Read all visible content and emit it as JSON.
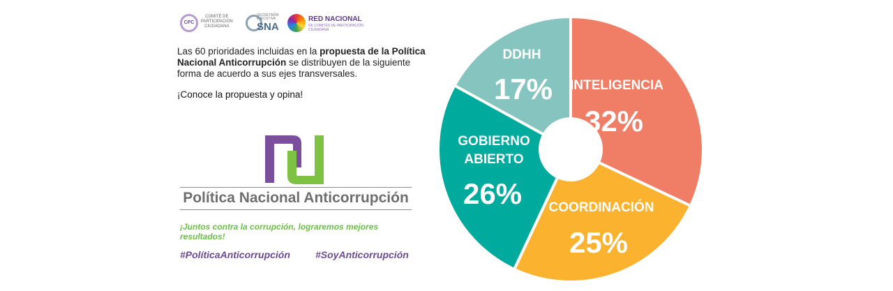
{
  "header": {
    "logo_cpc": {
      "badge": "CPC",
      "line1": "COMITÉ DE",
      "line2": "PARTICIPACIÓN",
      "line3": "CIUDADANA"
    },
    "logo_sna": {
      "line1": "SECRETARÍA",
      "line2": "EJECUTIVA",
      "name": "SNA"
    },
    "logo_red": {
      "name": "RED NACIONAL",
      "line1": "DE COMITÉS DE PARTICIPACIÓN",
      "line2": "CIUDADANA"
    }
  },
  "intro": {
    "part1": "Las 60 prioridades  incluidas en la ",
    "bold": "propuesta de la Política Nacional Anticorrupción",
    "part2": " se distribuyen de la siguiente forma de acuerdo a sus ejes transversales."
  },
  "cta": "¡Conoce  la propuesta y opina!",
  "brand": {
    "title": "Política Nacional Anticorrupción",
    "slogan": "¡Juntos contra la corrupción, lograremos mejores resultados!",
    "hashtag1": "#PolíticaAnticorrupción",
    "hashtag2": "#SoyAnticorrupción",
    "mark_colors": {
      "purple": "#7b4f9d",
      "green": "#7dc242"
    }
  },
  "chart_data": {
    "type": "pie",
    "donut_hole": true,
    "slices": [
      {
        "label": "INTELIGENCIA",
        "value": 32,
        "display": "32%",
        "color": "#f07d66"
      },
      {
        "label": "COORDINACIÓN",
        "value": 25,
        "display": "25%",
        "color": "#fbb22f"
      },
      {
        "label": "GOBIERNO ABIERTO",
        "value": 26,
        "display": "26%",
        "color": "#00aa9c"
      },
      {
        "label": "DDHH",
        "value": 17,
        "display": "17%",
        "color": "#86c4bf"
      }
    ]
  }
}
